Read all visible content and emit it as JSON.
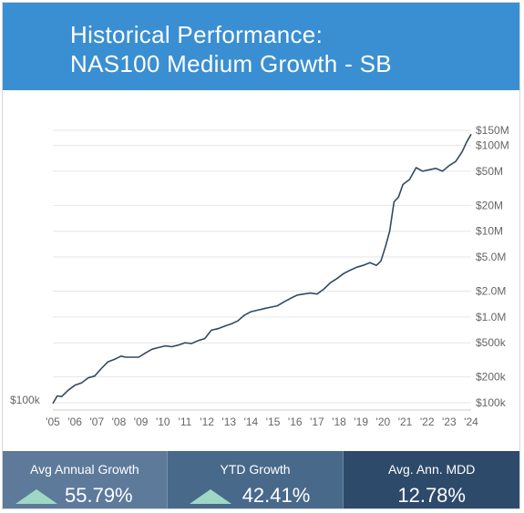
{
  "header": {
    "title_line1": "Historical Performance:",
    "title_line2": "NAS100 Medium Growth - SB"
  },
  "chart_data": {
    "type": "line",
    "scale": "log",
    "line_color": "#34495e",
    "grid": true,
    "ylim": [
      100000,
      150000000
    ],
    "y_ticks": [
      {
        "value": 100000,
        "label": "$100k"
      },
      {
        "value": 200000,
        "label": "$200k"
      },
      {
        "value": 500000,
        "label": "$500k"
      },
      {
        "value": 1000000,
        "label": "$1.0M"
      },
      {
        "value": 2000000,
        "label": "$2.0M"
      },
      {
        "value": 5000000,
        "label": "$5.0M"
      },
      {
        "value": 10000000,
        "label": "$10M"
      },
      {
        "value": 20000000,
        "label": "$20M"
      },
      {
        "value": 50000000,
        "label": "$50M"
      },
      {
        "value": 100000000,
        "label": "$100M"
      },
      {
        "value": 150000000,
        "label": "$150M"
      }
    ],
    "left_label": "$100k",
    "x_ticks": [
      {
        "value": 2005,
        "label": "'05"
      },
      {
        "value": 2006,
        "label": "'06"
      },
      {
        "value": 2007,
        "label": "'07"
      },
      {
        "value": 2008,
        "label": "'08"
      },
      {
        "value": 2009,
        "label": "'09"
      },
      {
        "value": 2010,
        "label": "'10"
      },
      {
        "value": 2011,
        "label": "'11"
      },
      {
        "value": 2012,
        "label": "'12"
      },
      {
        "value": 2013,
        "label": "'13"
      },
      {
        "value": 2014,
        "label": "'14"
      },
      {
        "value": 2015,
        "label": "'15"
      },
      {
        "value": 2016,
        "label": "'16"
      },
      {
        "value": 2017,
        "label": "'17"
      },
      {
        "value": 2018,
        "label": "'18"
      },
      {
        "value": 2019,
        "label": "'19"
      },
      {
        "value": 2020,
        "label": "'20"
      },
      {
        "value": 2021,
        "label": "'21"
      },
      {
        "value": 2022,
        "label": "'22"
      },
      {
        "value": 2023,
        "label": "'23"
      },
      {
        "value": 2024,
        "label": "'24"
      }
    ],
    "xlim": [
      2005,
      2024
    ],
    "series": [
      {
        "x": [
          2005.0,
          2005.2,
          2005.4,
          2005.7,
          2006.0,
          2006.3,
          2006.6,
          2006.9,
          2007.2,
          2007.5,
          2007.8,
          2008.1,
          2008.3,
          2008.6,
          2008.9,
          2009.2,
          2009.5,
          2009.8,
          2010.1,
          2010.4,
          2010.7,
          2011.0,
          2011.3,
          2011.6,
          2011.9,
          2012.2,
          2012.5,
          2012.8,
          2013.1,
          2013.4,
          2013.7,
          2014.0,
          2014.3,
          2014.6,
          2014.9,
          2015.2,
          2015.5,
          2015.8,
          2016.1,
          2016.4,
          2016.7,
          2017.0,
          2017.3,
          2017.6,
          2017.9,
          2018.2,
          2018.5,
          2018.8,
          2019.1,
          2019.4,
          2019.7,
          2019.9,
          2020.1,
          2020.3,
          2020.5,
          2020.7,
          2020.9,
          2021.2,
          2021.5,
          2021.8,
          2022.1,
          2022.4,
          2022.7,
          2023.0,
          2023.3,
          2023.6,
          2023.8,
          2024.0
        ],
        "y": [
          98000,
          120000,
          118000,
          140000,
          160000,
          170000,
          195000,
          205000,
          250000,
          300000,
          320000,
          350000,
          340000,
          340000,
          340000,
          380000,
          420000,
          440000,
          460000,
          450000,
          470000,
          500000,
          490000,
          530000,
          560000,
          700000,
          730000,
          780000,
          830000,
          900000,
          1050000,
          1150000,
          1200000,
          1250000,
          1300000,
          1350000,
          1500000,
          1650000,
          1800000,
          1850000,
          1900000,
          1850000,
          2100000,
          2500000,
          2800000,
          3200000,
          3500000,
          3800000,
          4000000,
          4300000,
          4000000,
          4500000,
          6500000,
          10000000,
          22000000,
          25000000,
          35000000,
          40000000,
          55000000,
          50000000,
          52000000,
          54000000,
          50000000,
          58000000,
          65000000,
          85000000,
          110000000,
          135000000
        ]
      }
    ]
  },
  "stats": [
    {
      "label": "Avg Annual Growth",
      "value": "55.79%",
      "trend": "up"
    },
    {
      "label": "YTD Growth",
      "value": "42.41%",
      "trend": "up"
    },
    {
      "label": "Avg. Ann. MDD",
      "value": "12.78%"
    }
  ]
}
